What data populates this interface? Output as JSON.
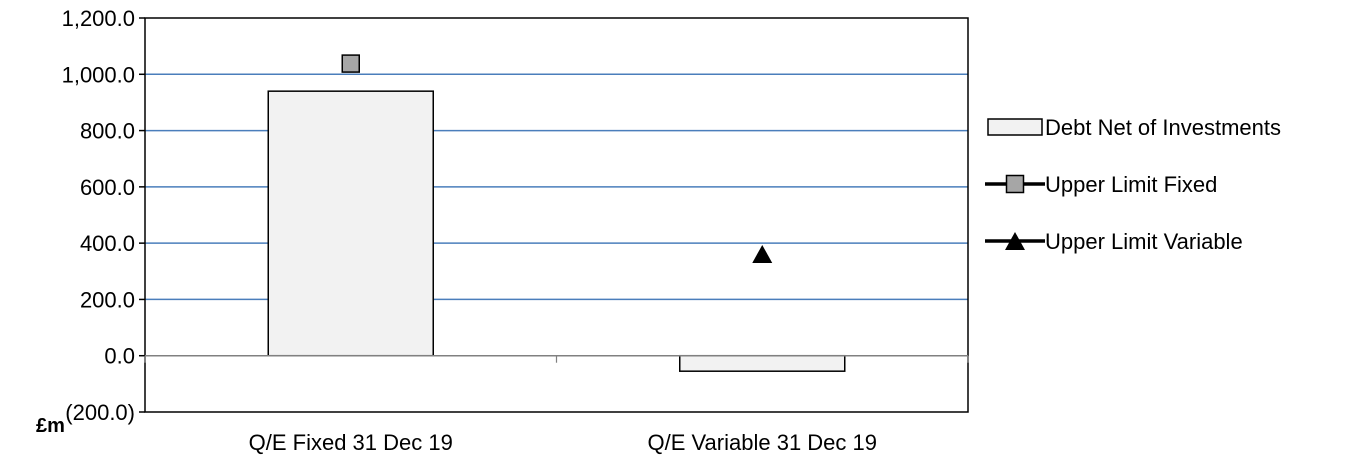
{
  "chart_data": {
    "type": "bar",
    "categories": [
      "Q/E Fixed 31 Dec 19",
      "Q/E Variable 31 Dec 19"
    ],
    "series": [
      {
        "name": "Debt Net of Investments",
        "kind": "bar",
        "values": [
          940,
          -55
        ]
      },
      {
        "name": "Upper Limit Fixed",
        "kind": "marker",
        "marker": "square",
        "values": [
          1038,
          null
        ]
      },
      {
        "name": "Upper Limit Variable",
        "kind": "marker",
        "marker": "triangle",
        "values": [
          null,
          358
        ]
      }
    ],
    "ylabel": "£m",
    "ylim": [
      -200,
      1200
    ],
    "yticks": [
      -200,
      0,
      200,
      400,
      600,
      800,
      1000,
      1200
    ],
    "ytick_labels": [
      "(200.0)",
      "0.0",
      "200.0",
      "400.0",
      "600.0",
      "800.0",
      "1,000.0",
      "1,200.0"
    ],
    "grid": true,
    "legend_position": "right",
    "colors": {
      "bar_fill": "#f2f2f2",
      "bar_stroke": "#000000",
      "gridline": "#4a7ebb",
      "fixed_marker": "#a6a6a6",
      "variable_marker": "#000000",
      "negative_tick_label": "#ff0000"
    }
  }
}
